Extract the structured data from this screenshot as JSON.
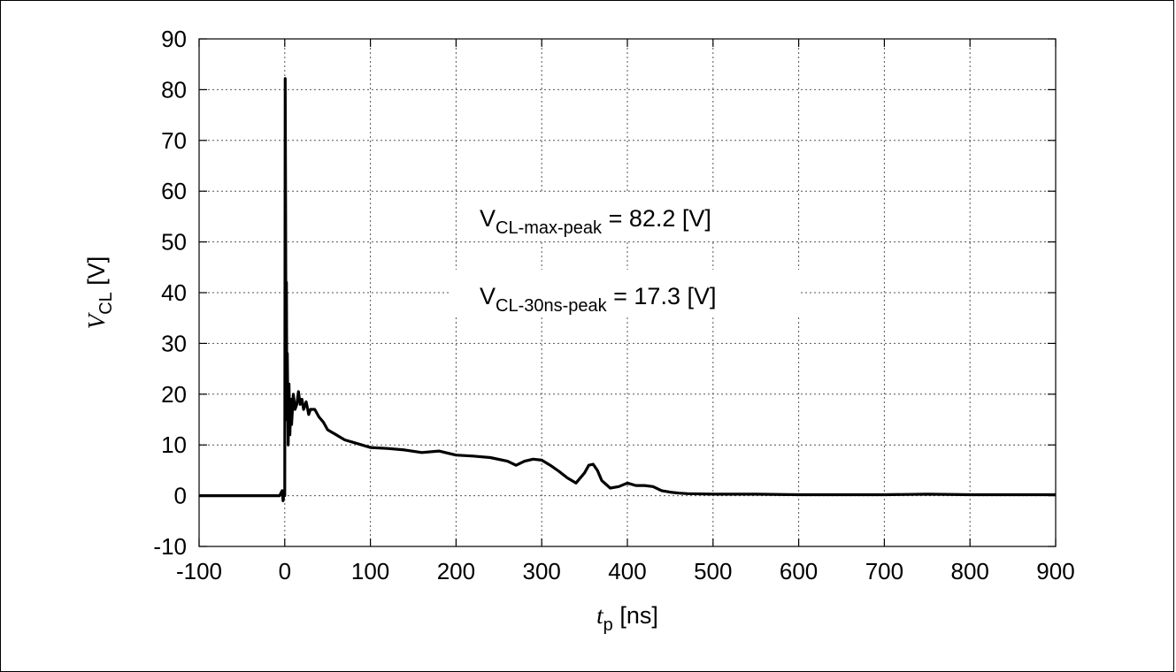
{
  "chart_data": {
    "type": "line",
    "xlabel": {
      "symbol": "t",
      "subscript": "p",
      "unit": "[ns]"
    },
    "ylabel": {
      "symbol": "V",
      "subscript": "CL",
      "unit": "[V]"
    },
    "xlim": [
      -100,
      900
    ],
    "ylim": [
      -10,
      90
    ],
    "xticks": [
      "-100",
      "0",
      "100",
      "200",
      "300",
      "400",
      "500",
      "600",
      "700",
      "800",
      "900"
    ],
    "yticks": [
      "-10",
      "0",
      "10",
      "20",
      "30",
      "40",
      "50",
      "60",
      "70",
      "80",
      "90"
    ],
    "grid": true,
    "annotations": [
      {
        "main": "V",
        "sub": "CL-max-peak",
        "rest": " = 82.2 [V]"
      },
      {
        "main": "V",
        "sub": "CL-30ns-peak",
        "rest": " = 17.3 [V]"
      }
    ],
    "series": [
      {
        "color": "#000000",
        "x": [
          -100,
          -60,
          -20,
          -6,
          -3,
          -2,
          -1,
          0,
          0.5,
          1,
          1.5,
          2,
          2.5,
          3,
          4,
          5,
          6,
          7,
          8,
          10,
          12,
          14,
          16,
          18,
          20,
          22,
          25,
          28,
          30,
          35,
          40,
          45,
          50,
          55,
          60,
          70,
          80,
          90,
          100,
          120,
          140,
          160,
          180,
          200,
          220,
          240,
          260,
          270,
          280,
          290,
          300,
          310,
          320,
          330,
          340,
          350,
          355,
          360,
          365,
          370,
          380,
          390,
          400,
          410,
          420,
          430,
          440,
          450,
          460,
          470,
          500,
          550,
          600,
          650,
          700,
          750,
          800,
          850,
          900
        ],
        "y": [
          0,
          0,
          0,
          0,
          1,
          -1,
          0.5,
          0,
          82.2,
          55,
          20,
          42,
          15,
          28,
          10,
          22,
          12,
          19,
          14,
          20,
          17,
          18,
          20.5,
          18,
          19,
          17,
          18.5,
          16,
          17,
          17,
          15.5,
          14.5,
          13,
          12.5,
          12,
          11,
          10.5,
          10,
          9.5,
          9.3,
          9,
          8.5,
          8.8,
          8,
          7.8,
          7.5,
          6.8,
          6,
          6.8,
          7.2,
          7,
          6,
          4.8,
          3.5,
          2.5,
          4.5,
          6,
          6.2,
          5,
          3,
          1.5,
          1.8,
          2.5,
          2,
          2,
          1.8,
          1,
          0.7,
          0.5,
          0.4,
          0.3,
          0.3,
          0.2,
          0.2,
          0.2,
          0.3,
          0.2,
          0.2,
          0.2
        ]
      }
    ]
  }
}
